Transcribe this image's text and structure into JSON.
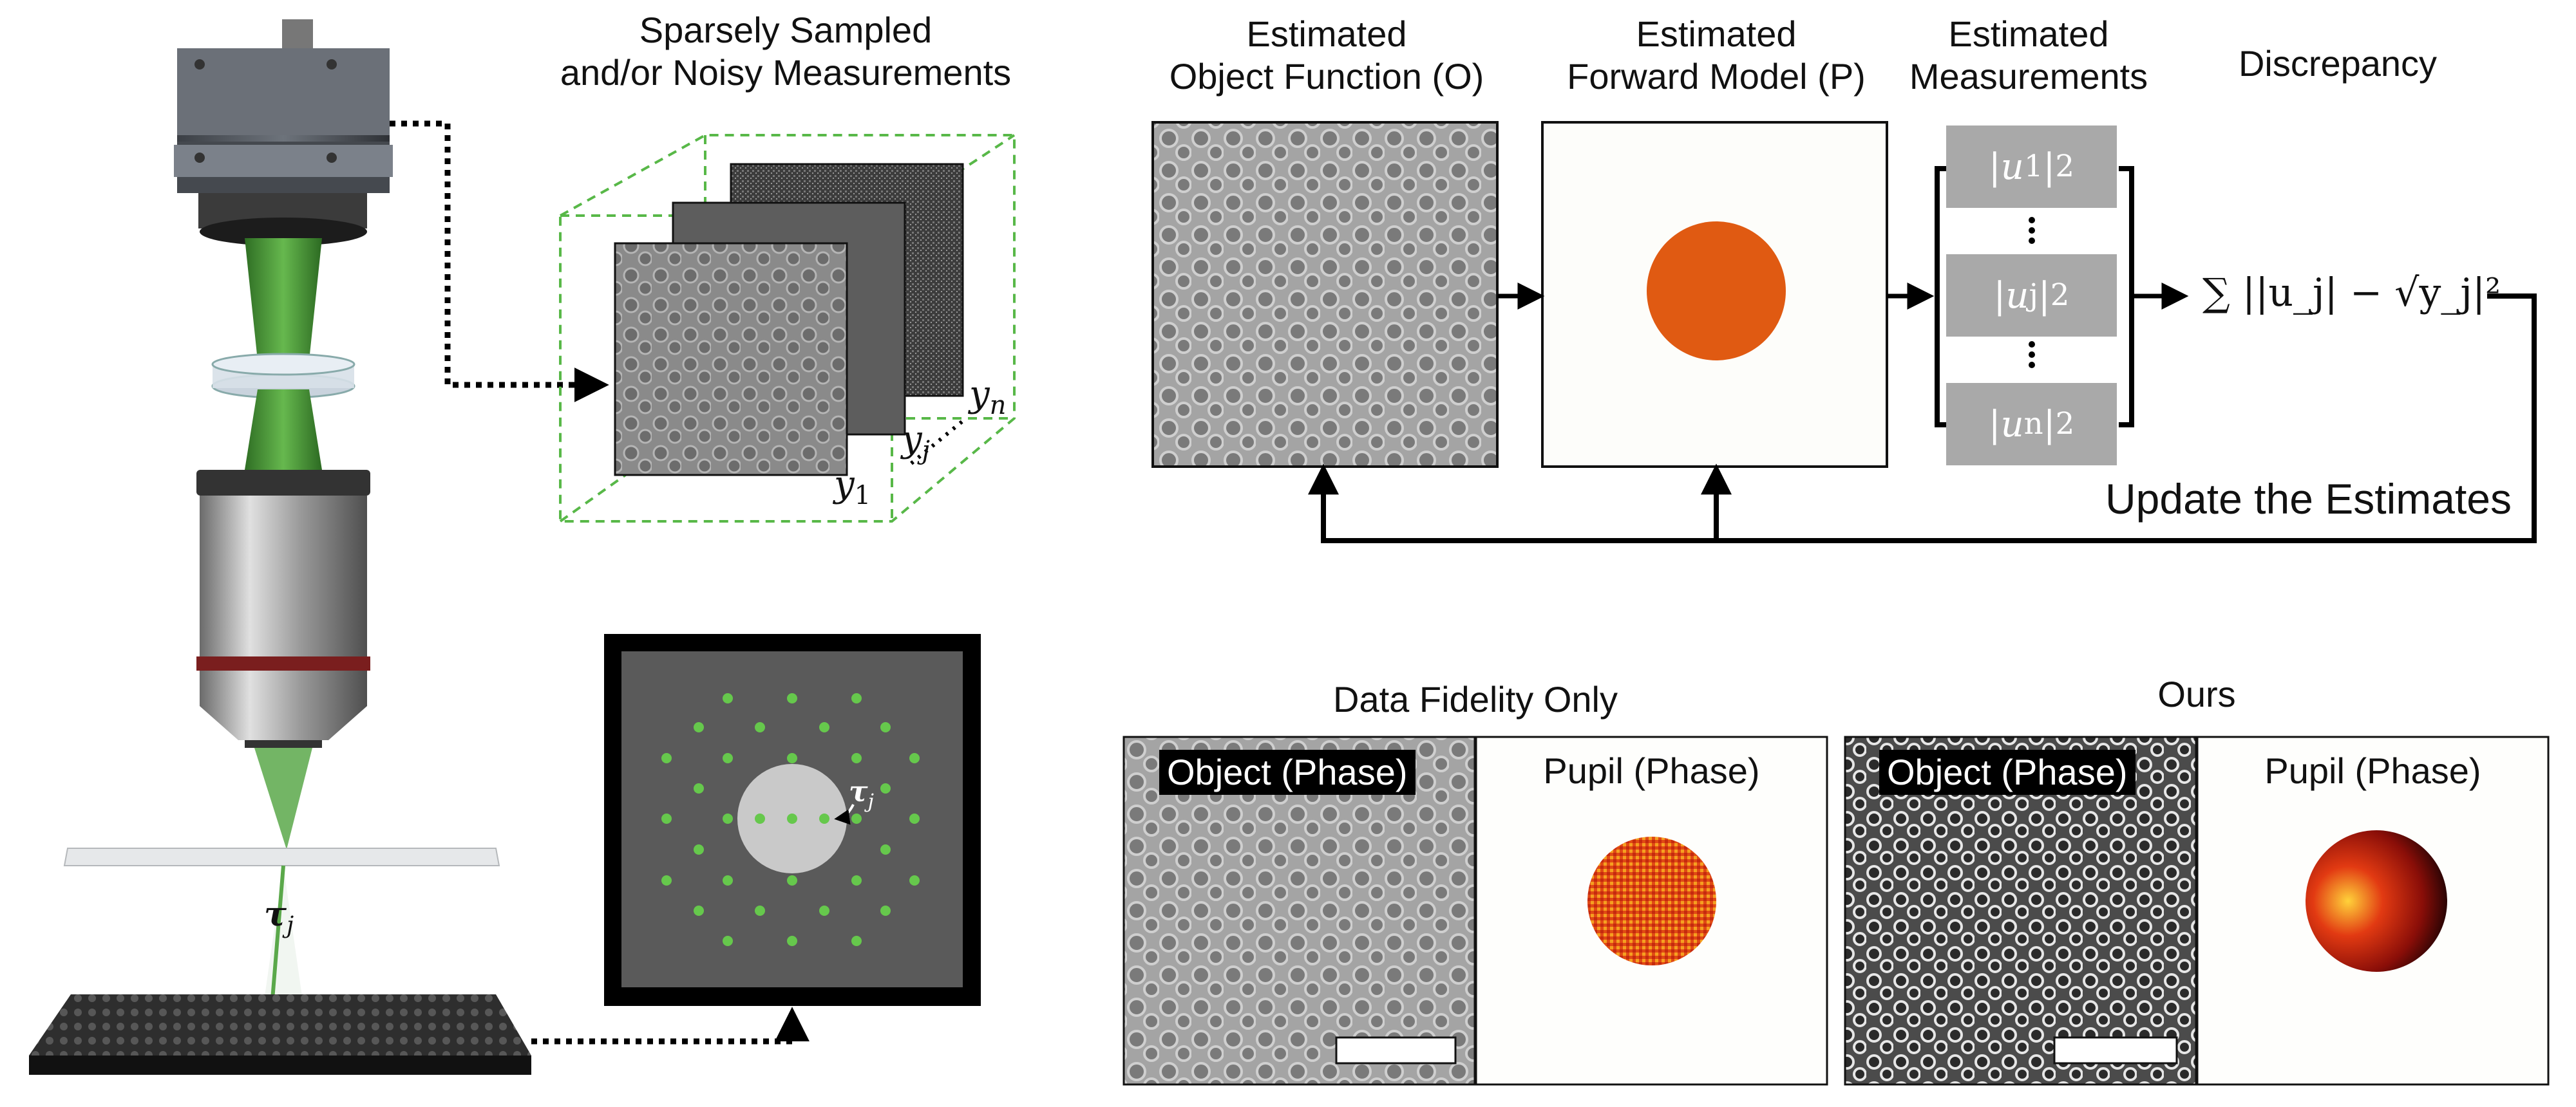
{
  "left": {
    "measurements_caption": "Sparsely Sampled\nand/or Noisy Measurements",
    "y_labels": {
      "y1": "y",
      "y1_sub": "1",
      "yj": "y",
      "yj_sub": "j",
      "yn": "y",
      "yn_sub": "n"
    },
    "tau_label": "τ",
    "tau_sub": "j"
  },
  "pipeline": {
    "object_caption": "Estimated\nObject Function (O)",
    "forward_caption": "Estimated\nForward Model (P)",
    "meas_caption": "Estimated\nMeasurements",
    "discrepancy_caption": "Discrepancy",
    "meas_items": [
      {
        "u": "u",
        "sub": "1",
        "sup": "2"
      },
      {
        "u": "u",
        "sub": "j",
        "sup": "2"
      },
      {
        "u": "u",
        "sub": "n",
        "sup": "2"
      }
    ],
    "formula": "∑ ||u_j| − √y_j|²",
    "update_label": "Update the Estimates"
  },
  "results": {
    "fidelity_title": "Data Fidelity Only",
    "ours_title": "Ours",
    "object_tag": "Object (Phase)",
    "pupil_tag": "Pupil (Phase)"
  },
  "colors": {
    "accent_green": "#58b848",
    "pupil_orange": "#e05a12",
    "meas_gray": "#a9a9a9",
    "dark_panel": "#5a5a5a"
  },
  "icons": [
    "camera-icon",
    "lens-icon",
    "objective-icon",
    "slide-icon",
    "sample-stage-icon"
  ]
}
